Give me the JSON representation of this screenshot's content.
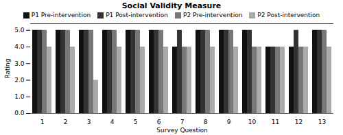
{
  "chart_data": {
    "type": "bar",
    "title": "Social Validity Measure",
    "xlabel": "Survey Question",
    "ylabel": "Rating",
    "categories": [
      1,
      2,
      3,
      4,
      5,
      6,
      7,
      8,
      9,
      10,
      11,
      12,
      13
    ],
    "series": [
      {
        "name": "P1 Pre-intervention",
        "color": "#111111",
        "values": [
          5,
          5,
          5,
          5,
          5,
          5,
          4,
          5,
          5,
          5,
          4,
          4,
          5
        ]
      },
      {
        "name": "P1 Post-intervention",
        "color": "#333333",
        "values": [
          5,
          5,
          5,
          5,
          5,
          5,
          5,
          5,
          5,
          5,
          4,
          5,
          5
        ]
      },
      {
        "name": "P2 Pre-intervention",
        "color": "#777777",
        "values": [
          5,
          5,
          5,
          5,
          5,
          5,
          4,
          5,
          5,
          4,
          4,
          4,
          5
        ]
      },
      {
        "name": "P2 Post-intervention",
        "color": "#aaaaaa",
        "values": [
          4,
          4,
          2,
          4,
          4,
          4,
          4,
          4,
          4,
          4,
          4,
          4,
          4
        ]
      }
    ],
    "ylim": [
      0,
      5.4
    ],
    "yticks": [
      0,
      1,
      2,
      3,
      4,
      5
    ],
    "grid": false,
    "legend": "top"
  }
}
